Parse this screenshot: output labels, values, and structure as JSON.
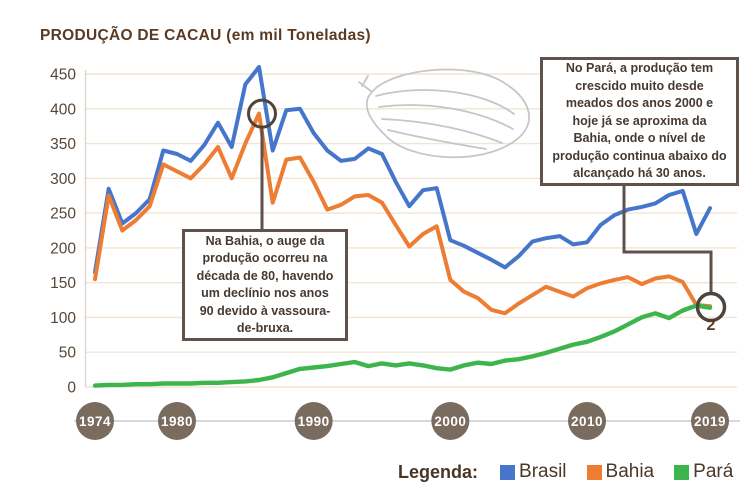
{
  "title": "PRODUÇÃO DE CACAU (em mil Toneladas)",
  "legend": {
    "label": "Legenda:",
    "items": [
      {
        "label": "Brasil",
        "color": "#4576cb"
      },
      {
        "label": "Bahia",
        "color": "#ec7d33"
      },
      {
        "label": "Pará",
        "color": "#3db54c"
      }
    ]
  },
  "annotations": {
    "bahia": "Na Bahia, o auge da produção ocorreu na década de 80, havendo um declínio nos anos 90 devido à vassoura-de-bruxa.",
    "para": "No Pará, a produção tem crescido muito desde meados dos anos 2000 e hoje já se aproxima da Bahia, onde o nível de produção continua abaixo do alcançado há 30 anos.",
    "marker_label": "2",
    "circled_points": [
      {
        "series": "Bahia",
        "year": 1986,
        "value": 393
      },
      {
        "series": "Bahia e Pará",
        "year": 2019,
        "value": 115
      }
    ]
  },
  "colors": {
    "title_text": "#5a3a22",
    "annotation_border": "#60514a",
    "annotation_text": "#463931",
    "axis_label": "#564638",
    "gridline": "#f3e4d4",
    "axis_line": "#dcd6cf",
    "year_badge": "#7a6b5f",
    "year_badge_text": "#ffffff",
    "ring": "#4d443c",
    "pod_sketch": "#c6c6c6"
  },
  "chart_data": {
    "type": "line",
    "title": "PRODUÇÃO DE CACAU (em mil Toneladas)",
    "xlabel": "",
    "ylabel": "mil toneladas",
    "ylim": [
      0,
      450
    ],
    "yticks": [
      0,
      50,
      100,
      150,
      200,
      250,
      300,
      350,
      400,
      450
    ],
    "x_badges": [
      {
        "label": "1974",
        "year": 1974
      },
      {
        "label": "1980",
        "year": 1980
      },
      {
        "label": "1990",
        "year": 1990
      },
      {
        "label": "2000",
        "year": 2000
      },
      {
        "label": "2010",
        "year": 2010
      },
      {
        "label": "2019",
        "year": 2019
      }
    ],
    "x": [
      1974,
      1975,
      1976,
      1977,
      1978,
      1979,
      1980,
      1981,
      1982,
      1983,
      1984,
      1985,
      1986,
      1987,
      1988,
      1989,
      1990,
      1991,
      1992,
      1993,
      1994,
      1995,
      1996,
      1997,
      1998,
      1999,
      2000,
      2001,
      2002,
      2003,
      2004,
      2005,
      2006,
      2007,
      2008,
      2009,
      2010,
      2011,
      2012,
      2013,
      2014,
      2015,
      2016,
      2017,
      2018,
      2019
    ],
    "series": [
      {
        "name": "Brasil",
        "color": "#4576cb",
        "values": [
          165,
          285,
          235,
          250,
          270,
          340,
          335,
          325,
          348,
          380,
          345,
          435,
          460,
          340,
          398,
          400,
          365,
          340,
          325,
          328,
          343,
          335,
          295,
          260,
          283,
          286,
          211,
          203,
          193,
          183,
          172,
          188,
          209,
          214,
          217,
          205,
          208,
          233,
          247,
          255,
          259,
          264,
          276,
          282,
          220,
          257
        ]
      },
      {
        "name": "Bahia",
        "color": "#ec7d33",
        "values": [
          155,
          275,
          225,
          240,
          260,
          320,
          310,
          300,
          320,
          345,
          300,
          350,
          393,
          265,
          327,
          330,
          295,
          255,
          262,
          274,
          276,
          265,
          233,
          202,
          220,
          231,
          154,
          137,
          128,
          111,
          106,
          120,
          132,
          144,
          137,
          130,
          142,
          149,
          154,
          158,
          148,
          156,
          159,
          151,
          118,
          116
        ]
      },
      {
        "name": "Pará",
        "color": "#3db54c",
        "values": [
          2,
          3,
          3,
          4,
          4,
          5,
          5,
          5,
          6,
          6,
          7,
          8,
          10,
          14,
          20,
          26,
          28,
          30,
          33,
          36,
          30,
          34,
          31,
          34,
          31,
          27,
          25,
          31,
          35,
          33,
          38,
          40,
          44,
          49,
          55,
          61,
          65,
          72,
          80,
          90,
          100,
          106,
          99,
          110,
          117,
          114
        ]
      }
    ],
    "legend_position": "bottom-right",
    "grid": true
  }
}
